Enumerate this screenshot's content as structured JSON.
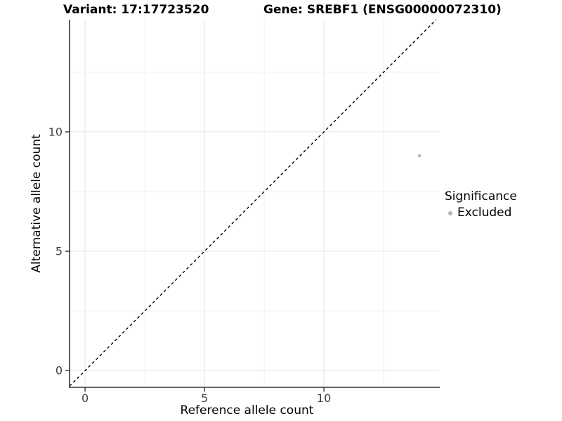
{
  "chart_data": {
    "type": "scatter",
    "title_left": "Variant: 17:17723520",
    "title_right": "Gene: SREBF1 (ENSG00000072310)",
    "xlabel": "Reference allele count",
    "ylabel": "Alternative allele count",
    "xlim": [
      -0.65,
      14.85
    ],
    "ylim": [
      -0.7,
      14.7
    ],
    "xticks": [
      0,
      5,
      10
    ],
    "yticks": [
      0,
      5,
      10
    ],
    "xminor": [
      2.5,
      7.5,
      12.5
    ],
    "yminor": [
      2.5,
      7.5,
      12.5
    ],
    "grid": "major+minor",
    "background": "#ffffff",
    "grid_color_major": "#e4e4e4",
    "grid_color_minor": "#f1f1f1",
    "axis_color": "#333333",
    "tick_label_color": "#404040",
    "reference_line": {
      "type": "identity y=x",
      "style": "dashed",
      "color": "#000000"
    },
    "series": [
      {
        "name": "Excluded",
        "color": "#b5b5b5",
        "points": [
          {
            "x": 14,
            "y": 9
          }
        ]
      }
    ],
    "legend": {
      "title": "Significance",
      "position": "right",
      "items": [
        {
          "label": "Excluded",
          "color": "#b5b5b5"
        }
      ]
    }
  }
}
